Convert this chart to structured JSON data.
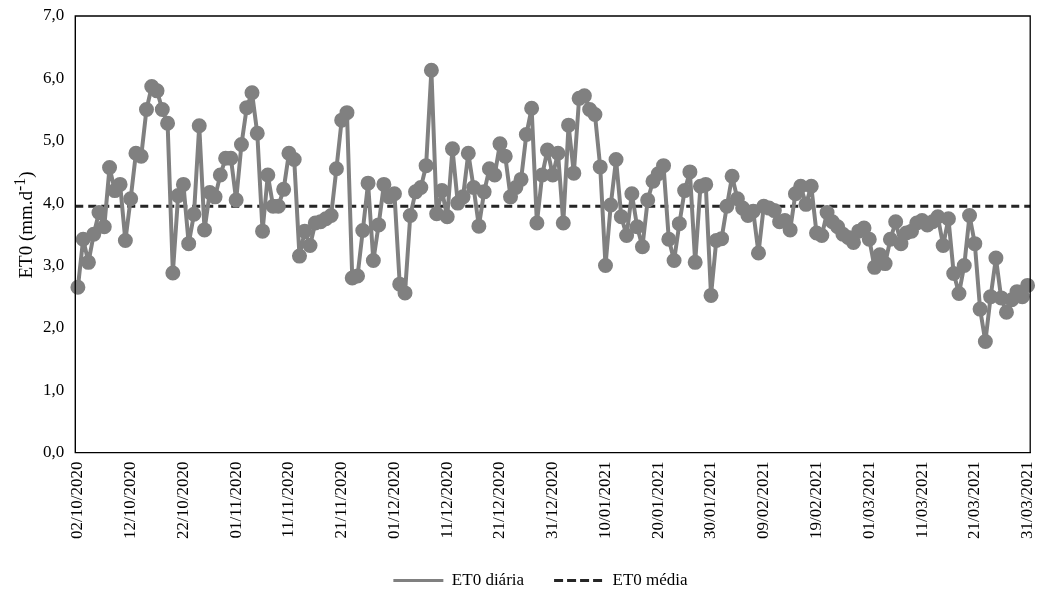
{
  "chart_data": {
    "type": "line",
    "ylabel": "ET0 (mm.d$^{-1}$)",
    "categories": [
      "02/10/2020",
      null,
      null,
      null,
      null,
      null,
      null,
      null,
      null,
      null,
      "12/10/2020",
      null,
      null,
      null,
      null,
      null,
      null,
      null,
      null,
      null,
      "22/10/2020",
      null,
      null,
      null,
      null,
      null,
      null,
      null,
      null,
      null,
      "01/11/2020",
      null,
      null,
      null,
      null,
      null,
      null,
      null,
      null,
      null,
      "11/11/2020",
      null,
      null,
      null,
      null,
      null,
      null,
      null,
      null,
      null,
      "21/11/2020",
      null,
      null,
      null,
      null,
      null,
      null,
      null,
      null,
      null,
      "01/12/2020",
      null,
      null,
      null,
      null,
      null,
      null,
      null,
      null,
      null,
      "11/12/2020",
      null,
      null,
      null,
      null,
      null,
      null,
      null,
      null,
      null,
      "21/12/2020",
      null,
      null,
      null,
      null,
      null,
      null,
      null,
      null,
      null,
      "31/12/2020",
      null,
      null,
      null,
      null,
      null,
      null,
      null,
      null,
      null,
      "10/01/2021",
      null,
      null,
      null,
      null,
      null,
      null,
      null,
      null,
      null,
      "20/01/2021",
      null,
      null,
      null,
      null,
      null,
      null,
      null,
      null,
      null,
      "30/01/2021",
      null,
      null,
      null,
      null,
      null,
      null,
      null,
      null,
      null,
      "09/02/2021",
      null,
      null,
      null,
      null,
      null,
      null,
      null,
      null,
      null,
      "19/02/2021",
      null,
      null,
      null,
      null,
      null,
      null,
      null,
      null,
      null,
      "01/03/2021",
      null,
      null,
      null,
      null,
      null,
      null,
      null,
      null,
      null,
      "11/03/2021",
      null,
      null,
      null,
      null,
      null,
      null,
      null,
      null,
      null,
      "21/03/2021",
      null,
      null,
      null,
      null,
      null,
      null,
      null,
      null,
      null,
      "31/03/2021"
    ],
    "series": [
      {
        "name": "ET0 diária",
        "color": "#808080",
        "values": [
          2.65,
          3.42,
          3.05,
          3.5,
          3.85,
          3.62,
          4.57,
          4.2,
          4.3,
          3.4,
          4.07,
          4.8,
          4.75,
          5.5,
          5.87,
          5.8,
          5.5,
          5.28,
          2.88,
          4.12,
          4.3,
          3.35,
          3.82,
          5.24,
          3.57,
          4.17,
          4.1,
          4.45,
          4.72,
          4.72,
          4.05,
          4.94,
          5.53,
          5.77,
          5.12,
          3.55,
          4.45,
          3.95,
          3.95,
          4.22,
          4.8,
          4.7,
          3.15,
          3.55,
          3.32,
          3.68,
          3.7,
          3.75,
          3.8,
          4.55,
          5.33,
          5.45,
          2.8,
          2.83,
          3.56,
          4.32,
          3.08,
          3.65,
          4.3,
          4.1,
          4.15,
          2.7,
          2.56,
          3.8,
          4.18,
          4.25,
          4.6,
          6.13,
          3.83,
          4.2,
          3.78,
          4.87,
          4.0,
          4.1,
          4.8,
          4.25,
          3.63,
          4.18,
          4.55,
          4.45,
          4.95,
          4.75,
          4.1,
          4.25,
          4.38,
          5.1,
          5.52,
          3.68,
          4.45,
          4.85,
          4.45,
          4.8,
          3.68,
          5.25,
          4.48,
          5.68,
          5.72,
          5.5,
          5.42,
          4.58,
          3.0,
          3.97,
          4.7,
          3.78,
          3.48,
          4.15,
          3.62,
          3.3,
          4.05,
          4.35,
          4.47,
          4.6,
          3.42,
          3.08,
          3.67,
          4.2,
          4.5,
          3.05,
          4.27,
          4.3,
          2.52,
          3.4,
          3.43,
          3.95,
          4.43,
          4.07,
          3.92,
          3.8,
          3.87,
          3.2,
          3.95,
          3.92,
          3.88,
          3.7,
          3.72,
          3.57,
          4.15,
          4.27,
          3.98,
          4.27,
          3.52,
          3.48,
          3.85,
          3.7,
          3.62,
          3.5,
          3.45,
          3.37,
          3.55,
          3.6,
          3.42,
          2.97,
          3.17,
          3.03,
          3.42,
          3.7,
          3.35,
          3.52,
          3.55,
          3.68,
          3.72,
          3.65,
          3.7,
          3.78,
          3.32,
          3.75,
          2.87,
          2.55,
          3.0,
          3.8,
          3.35,
          2.3,
          1.78,
          2.5,
          3.12,
          2.48,
          2.25,
          2.45,
          2.58,
          2.5,
          2.68
        ]
      }
    ],
    "ref_lines": [
      {
        "axis": "y",
        "value": 3.95,
        "label": "ET0 média",
        "color": "#262626",
        "line_style": "dashed"
      }
    ],
    "ylim": [
      0,
      7
    ],
    "yticks": [
      {
        "value": 0,
        "label": "0,0"
      },
      {
        "value": 1,
        "label": "1,0"
      },
      {
        "value": 2,
        "label": "2,0"
      },
      {
        "value": 3,
        "label": "3,0"
      },
      {
        "value": 4,
        "label": "4,0"
      },
      {
        "value": 5,
        "label": "5,0"
      },
      {
        "value": 6,
        "label": "6,0"
      },
      {
        "value": 7,
        "label": "7,0"
      }
    ],
    "grid": false,
    "legend": "bottom",
    "marker": "circle",
    "line_style": "solid"
  }
}
